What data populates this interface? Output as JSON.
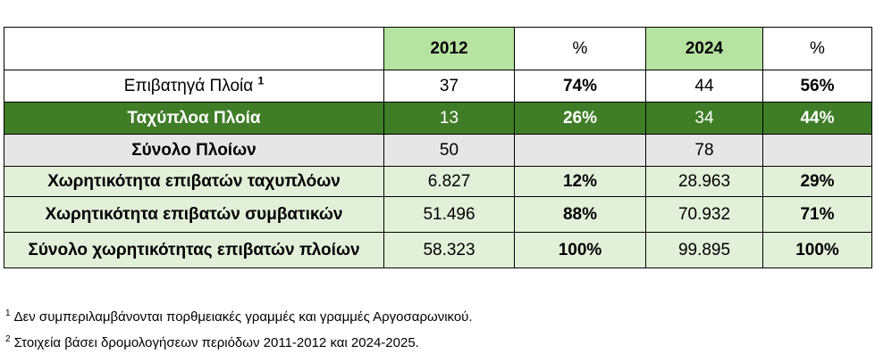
{
  "table": {
    "header": {
      "label": "",
      "year1": "2012",
      "pct1": "%",
      "year2": "2024",
      "pct2": "%"
    },
    "rows": [
      {
        "label": "Επιβατηγά Πλοία",
        "label_sup": "1",
        "v1": "37",
        "p1": "74%",
        "v2": "44",
        "p2": "56%"
      },
      {
        "label": "Ταχύπλοα Πλοία",
        "v1": "13",
        "p1": "26%",
        "v2": "34",
        "p2": "44%"
      },
      {
        "label": "Σύνολο Πλοίων",
        "v1": "50",
        "p1": "",
        "v2": "78",
        "p2": ""
      },
      {
        "label": "Χωρητικότητα επιβατών ταχυπλόων",
        "v1": "6.827",
        "p1": "12%",
        "v2": "28.963",
        "p2": "29%"
      },
      {
        "label": "Χωρητικότητα επιβατών συμβατικών",
        "v1": "51.496",
        "p1": "88%",
        "v2": "70.932",
        "p2": "71%"
      },
      {
        "label": "Σύνολο χωρητικότητας επιβατών πλοίων",
        "v1": "58.323",
        "p1": "100%",
        "v2": "99.895",
        "p2": "100%"
      }
    ],
    "colors": {
      "year_header": "#b6e3a1",
      "highlight_row": "#3f7d27",
      "total_row": "#e6e6e6",
      "capacity_rows": "#e2f0d9"
    }
  },
  "footnotes": [
    {
      "mark": "1",
      "text": "Δεν συμπεριλαμβάνονται πορθμειακές γραμμές και γραμμές Αργοσαρωνικού."
    },
    {
      "mark": "2",
      "text": "Στοιχεία βάσει δρομολογήσεων περιόδων 2011-2012 και 2024-2025."
    }
  ]
}
